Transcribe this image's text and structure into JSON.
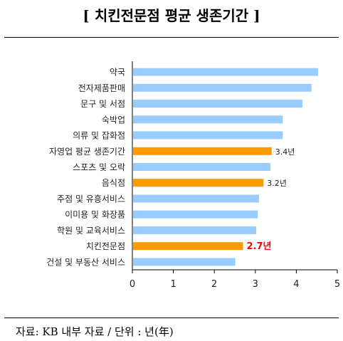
{
  "chart_data": {
    "type": "bar",
    "orientation": "horizontal",
    "title": "[ 치킨전문점 평균 생존기간 ]",
    "source": "자료: KB 내부 자료 / 단위 : 년(年)",
    "categories": [
      "약국",
      "전자제품판매",
      "문구 및 서점",
      "숙박업",
      "의류 및 잡화점",
      "자영업 평균 생존기간",
      "스포츠 및 오락",
      "음식점",
      "주점 및 유흥서비스",
      "이미용 및 화장품",
      "학원 및 교육서비스",
      "치킨전문점",
      "건설 및 부동산 서비스"
    ],
    "values": [
      4.53,
      4.37,
      4.15,
      3.67,
      3.67,
      3.4,
      3.37,
      3.2,
      3.09,
      3.06,
      3.02,
      2.7,
      2.51
    ],
    "highlighted": [
      false,
      false,
      false,
      false,
      false,
      true,
      false,
      true,
      false,
      false,
      false,
      true,
      false
    ],
    "data_labels": [
      "",
      "",
      "",
      "",
      "",
      "3.4년",
      "",
      "3.2년",
      "",
      "",
      "",
      "2.7년",
      ""
    ],
    "xlim": [
      0,
      5
    ],
    "xticks": [
      "0",
      "1",
      "2",
      "3",
      "4",
      "5"
    ],
    "colors": {
      "bar": "#99ccff",
      "highlight": "#ff9900",
      "emphasis_label": "#ff0000"
    }
  }
}
